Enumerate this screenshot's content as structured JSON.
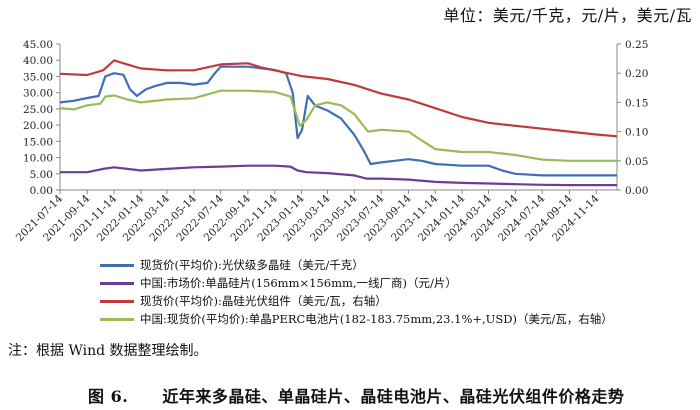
{
  "unit_label": "单位：美元/千克，元/片，美元/瓦",
  "note": "注：根据 Wind 数据整理绘制。",
  "caption": {
    "number": "图 6.",
    "text": "近年来多晶硅、单晶硅片、晶硅电池片、晶硅光伏组件价格走势"
  },
  "colors": {
    "polysilicon": "#3f6fb3",
    "wafer": "#6a3d96",
    "module": "#c0393b",
    "cell": "#9bbb59"
  },
  "chart_data": {
    "type": "line",
    "x_ticks": [
      "2021-07-14",
      "2021-09-14",
      "2021-11-14",
      "2022-01-14",
      "2022-03-14",
      "2022-05-14",
      "2022-07-14",
      "2022-09-14",
      "2022-11-14",
      "2023-01-14",
      "2023-03-14",
      "2023-05-14",
      "2023-07-14",
      "2023-09-14",
      "2023-11-14",
      "2024-01-14",
      "2024-03-14",
      "2024-05-14",
      "2024-07-14",
      "2024-09-14",
      "2024-11-14"
    ],
    "ylim_left": [
      0,
      45
    ],
    "yticks_left": [
      "0.00",
      "5.00",
      "10.00",
      "15.00",
      "20.00",
      "25.00",
      "30.00",
      "35.00",
      "40.00",
      "45.00"
    ],
    "ylim_right": [
      0,
      0.25
    ],
    "yticks_right": [
      "0.00",
      "0.05",
      "0.10",
      "0.15",
      "0.20",
      "0.25"
    ],
    "series": [
      {
        "name": "现货价(平均价):光伏级多晶硅（美元/千克）",
        "key": "polysilicon",
        "axis": "left",
        "points": [
          [
            "2021-07-14",
            27
          ],
          [
            "2021-08-14",
            27.5
          ],
          [
            "2021-09-20",
            28.5
          ],
          [
            "2021-10-10",
            29
          ],
          [
            "2021-10-25",
            35
          ],
          [
            "2021-11-14",
            36
          ],
          [
            "2021-12-05",
            35.5
          ],
          [
            "2021-12-20",
            31
          ],
          [
            "2022-01-05",
            29
          ],
          [
            "2022-01-25",
            31
          ],
          [
            "2022-02-14",
            32
          ],
          [
            "2022-03-14",
            33
          ],
          [
            "2022-04-14",
            33
          ],
          [
            "2022-05-14",
            32.5
          ],
          [
            "2022-06-14",
            33
          ],
          [
            "2022-07-01",
            36
          ],
          [
            "2022-07-14",
            38
          ],
          [
            "2022-08-14",
            38
          ],
          [
            "2022-09-14",
            38
          ],
          [
            "2022-10-14",
            37.5
          ],
          [
            "2022-11-14",
            37
          ],
          [
            "2022-12-10",
            36
          ],
          [
            "2022-12-25",
            30
          ],
          [
            "2023-01-05",
            16
          ],
          [
            "2023-01-15",
            18.5
          ],
          [
            "2023-01-28",
            29
          ],
          [
            "2023-02-14",
            26
          ],
          [
            "2023-03-14",
            24.5
          ],
          [
            "2023-04-14",
            22
          ],
          [
            "2023-05-14",
            17
          ],
          [
            "2023-06-05",
            12
          ],
          [
            "2023-06-20",
            8
          ],
          [
            "2023-07-14",
            8.5
          ],
          [
            "2023-08-14",
            9
          ],
          [
            "2023-09-14",
            9.5
          ],
          [
            "2023-10-14",
            9
          ],
          [
            "2023-11-14",
            8
          ],
          [
            "2024-01-14",
            7.5
          ],
          [
            "2024-03-14",
            7.5
          ],
          [
            "2024-04-14",
            6
          ],
          [
            "2024-05-14",
            5
          ],
          [
            "2024-07-14",
            4.5
          ],
          [
            "2024-09-14",
            4.5
          ],
          [
            "2024-11-14",
            4.5
          ],
          [
            "2024-12-31",
            4.5
          ]
        ]
      },
      {
        "name": "中国:市场价:单晶硅片(156mm×156mm,一线厂商)（元/片）",
        "key": "wafer",
        "axis": "left",
        "points": [
          [
            "2021-07-14",
            5.5
          ],
          [
            "2021-09-14",
            5.5
          ],
          [
            "2021-10-20",
            6.5
          ],
          [
            "2021-11-14",
            7
          ],
          [
            "2021-12-14",
            6.5
          ],
          [
            "2022-01-14",
            6
          ],
          [
            "2022-03-14",
            6.5
          ],
          [
            "2022-05-14",
            7
          ],
          [
            "2022-07-14",
            7.2
          ],
          [
            "2022-09-14",
            7.5
          ],
          [
            "2022-11-14",
            7.5
          ],
          [
            "2022-12-20",
            7.2
          ],
          [
            "2023-01-05",
            6
          ],
          [
            "2023-01-25",
            5.5
          ],
          [
            "2023-03-14",
            5.2
          ],
          [
            "2023-05-14",
            4.5
          ],
          [
            "2023-06-10",
            3.5
          ],
          [
            "2023-07-14",
            3.5
          ],
          [
            "2023-09-14",
            3.2
          ],
          [
            "2023-11-14",
            2.5
          ],
          [
            "2024-01-14",
            2.2
          ],
          [
            "2024-03-14",
            2
          ],
          [
            "2024-05-14",
            1.8
          ],
          [
            "2024-07-14",
            1.6
          ],
          [
            "2024-09-14",
            1.5
          ],
          [
            "2024-12-31",
            1.5
          ]
        ]
      },
      {
        "name": "现货价(平均价):晶硅光伏组件（美元/瓦，右轴）",
        "key": "module",
        "axis": "right",
        "points": [
          [
            "2021-07-14",
            0.199
          ],
          [
            "2021-09-14",
            0.197
          ],
          [
            "2021-10-20",
            0.205
          ],
          [
            "2021-11-14",
            0.222
          ],
          [
            "2021-12-14",
            0.215
          ],
          [
            "2022-01-14",
            0.208
          ],
          [
            "2022-03-14",
            0.205
          ],
          [
            "2022-05-14",
            0.205
          ],
          [
            "2022-07-14",
            0.215
          ],
          [
            "2022-09-14",
            0.217
          ],
          [
            "2022-10-14",
            0.21
          ],
          [
            "2022-11-14",
            0.205
          ],
          [
            "2022-12-14",
            0.2
          ],
          [
            "2023-01-14",
            0.195
          ],
          [
            "2023-03-14",
            0.19
          ],
          [
            "2023-05-14",
            0.18
          ],
          [
            "2023-07-14",
            0.165
          ],
          [
            "2023-09-14",
            0.155
          ],
          [
            "2023-11-14",
            0.14
          ],
          [
            "2024-01-14",
            0.125
          ],
          [
            "2024-03-14",
            0.115
          ],
          [
            "2024-05-14",
            0.11
          ],
          [
            "2024-07-14",
            0.105
          ],
          [
            "2024-09-14",
            0.1
          ],
          [
            "2024-11-14",
            0.095
          ],
          [
            "2024-12-31",
            0.092
          ]
        ]
      },
      {
        "name": "中国:现货价(平均价):单晶PERC电池片(182-183.75mm,23.1%+,USD)（美元/瓦，右轴）",
        "key": "cell",
        "axis": "right",
        "points": [
          [
            "2021-07-14",
            0.14
          ],
          [
            "2021-08-14",
            0.138
          ],
          [
            "2021-09-14",
            0.145
          ],
          [
            "2021-10-14",
            0.148
          ],
          [
            "2021-10-25",
            0.16
          ],
          [
            "2021-11-14",
            0.162
          ],
          [
            "2021-12-14",
            0.155
          ],
          [
            "2022-01-14",
            0.15
          ],
          [
            "2022-03-14",
            0.155
          ],
          [
            "2022-05-14",
            0.157
          ],
          [
            "2022-07-14",
            0.17
          ],
          [
            "2022-09-14",
            0.17
          ],
          [
            "2022-11-14",
            0.168
          ],
          [
            "2022-12-20",
            0.16
          ],
          [
            "2023-01-10",
            0.11
          ],
          [
            "2023-01-25",
            0.12
          ],
          [
            "2023-02-14",
            0.145
          ],
          [
            "2023-03-14",
            0.15
          ],
          [
            "2023-04-14",
            0.145
          ],
          [
            "2023-05-14",
            0.13
          ],
          [
            "2023-06-14",
            0.1
          ],
          [
            "2023-07-14",
            0.103
          ],
          [
            "2023-09-14",
            0.1
          ],
          [
            "2023-10-14",
            0.085
          ],
          [
            "2023-11-14",
            0.07
          ],
          [
            "2024-01-14",
            0.065
          ],
          [
            "2024-03-14",
            0.065
          ],
          [
            "2024-05-14",
            0.06
          ],
          [
            "2024-07-14",
            0.052
          ],
          [
            "2024-09-14",
            0.05
          ],
          [
            "2024-12-31",
            0.05
          ]
        ]
      }
    ]
  }
}
